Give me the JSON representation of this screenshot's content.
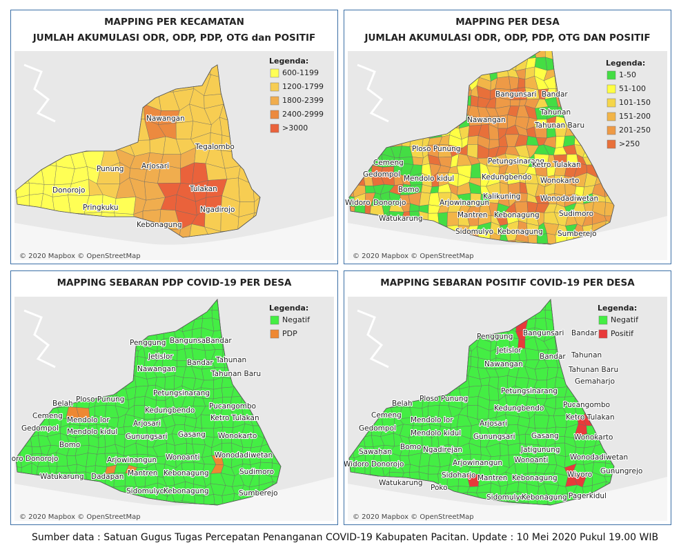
{
  "panels": [
    {
      "title": [
        "MAPPING PER KECAMATAN",
        "JUMLAH AKUMULASI ODR, ODP, PDP, OTG dan POSITIF"
      ],
      "legend": {
        "title": "Legenda:",
        "items": [
          {
            "label": "600-1199",
            "color": "#ffff55"
          },
          {
            "label": "1200-1799",
            "color": "#f7cd52"
          },
          {
            "label": "1800-2399",
            "color": "#f0ad4e"
          },
          {
            "label": "2400-2999",
            "color": "#ec8a3f"
          },
          {
            "label": ">3000",
            "color": "#ea623b"
          }
        ]
      },
      "places": [
        "Nawangan",
        "Tegalombo",
        "Punung",
        "Arjosari",
        "Tulakan",
        "Donorojo",
        "Ngadirojo",
        "Pringkuku",
        "Kebonagung"
      ],
      "attribution": "© 2020 Mapbox © OpenStreetMap"
    },
    {
      "title": [
        "MAPPING PER DESA",
        "JUMLAH AKUMULASI ODR, ODP, PDP, OTG DAN POSITIF"
      ],
      "legend": {
        "title": "Legenda:",
        "items": [
          {
            "label": "1-50",
            "color": "#44dd44"
          },
          {
            "label": "51-100",
            "color": "#ffff44"
          },
          {
            "label": "101-150",
            "color": "#f5d64a"
          },
          {
            "label": "151-200",
            "color": "#f2b548"
          },
          {
            "label": "201-250",
            "color": "#ee9a46"
          },
          {
            "label": ">250",
            "color": "#e8703a"
          }
        ]
      },
      "places": [
        "Bangunsari",
        "Bandar",
        "Tahunan",
        "Nawangan",
        "Tahunan Baru",
        "Ploso Punung",
        "Petungsinarang",
        "Cemeng",
        "Kedungbendo",
        "Ketro Tulakan",
        "Gedompol",
        "Mendolo kidul",
        "Kalikuning",
        "Wonokarto",
        "Bomo",
        "Widoro",
        "Donorojo",
        "Arjowinangun",
        "Wonodadiwetan",
        "Watukarung",
        "Mantren",
        "Kebonagung",
        "Sudimoro",
        "Sidomulyo",
        "Kebonagung",
        "Sumberejo"
      ],
      "attribution": "© 2020 Mapbox © OpenStreetMap"
    },
    {
      "title": [
        "MAPPING SEBARAN PDP COVID-19 PER DESA"
      ],
      "legend": {
        "title": "Legenda:",
        "items": [
          {
            "label": "Negatif",
            "color": "#44ee44"
          },
          {
            "label": "PDP",
            "color": "#ee8833"
          }
        ]
      },
      "places": [
        "Penggung",
        "Bangunsari",
        "Bandar",
        "Jetislor",
        "Bandar",
        "Tahunan",
        "Nawangan",
        "Tahunan Baru",
        "Belah",
        "Ploso Punung",
        "Petungsinarang",
        "Pucangombo",
        "Kedungbendo",
        "Cemeng",
        "Mendolo lor",
        "Ketro Tulakan",
        "Gedompol",
        "Mendolo kidul",
        "Arjosari",
        "Gunungsari",
        "Gasang",
        "Wonokarto",
        "Bomo",
        "Widoro Donorojo",
        "Arjowinangun",
        "Wonoanti",
        "Wonodadiwetan",
        "Watukarung",
        "Dadapan",
        "Mantren",
        "Kebonagung",
        "Sudimoro",
        "Sidomulyo",
        "Kebonagung",
        "Sumberejo"
      ],
      "attribution": "© 2020 Mapbox © OpenStreetMap"
    },
    {
      "title": [
        "MAPPING SEBARAN POSITIF COVID-19 PER DESA"
      ],
      "legend": {
        "title": "Legenda:",
        "items": [
          {
            "label": "Negatif",
            "color": "#44ee44"
          },
          {
            "label": "Positif",
            "color": "#e83a3a"
          }
        ]
      },
      "places": [
        "Penggung",
        "Bangunsari",
        "Bandar",
        "Jetislor",
        "Bandar",
        "Tahunan",
        "Nawangan",
        "Tahunan Baru",
        "Gemaharjo",
        "Belah",
        "Ploso Punung",
        "Petungsinarang",
        "Pucangombo",
        "Kedungbendo",
        "Cemeng",
        "Mendolo lor",
        "Ketro Tulakan",
        "Arjosari",
        "Gedompol",
        "Mendolo kidul",
        "Gunungsari",
        "Gasang",
        "Wonokarto",
        "Bomo",
        "Ngadirejan",
        "Jatigunung",
        "Sawahan",
        "Wonoanti",
        "Widoro",
        "Donorojo",
        "Arjowinangun",
        "Wonodadiwetan",
        "Sidoharjo",
        "Mantren",
        "Kebonagung",
        "Wiyoro",
        "Gunungrejo",
        "Watukarung",
        "Poko",
        "Sidomulyo",
        "Kebonagung",
        "Pagerkidul"
      ],
      "attribution": "© 2020 Mapbox © OpenStreetMap"
    }
  ],
  "footer": "Sumber data  : Satuan Gugus Tugas Percepatan Penanganan COVID-19  Kabupaten Pacitan. Update : 10 Mei 2020 Pukul 19.00 WIB"
}
